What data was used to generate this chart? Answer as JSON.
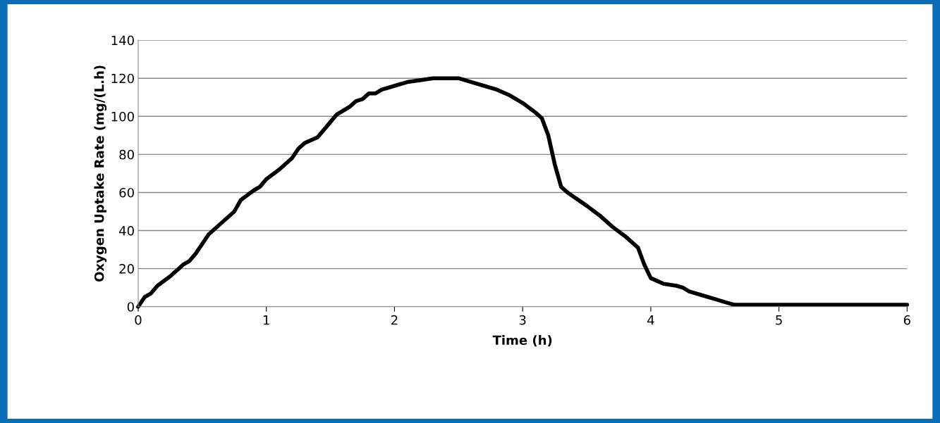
{
  "chart_data": {
    "type": "line",
    "xlabel": "Time (h)",
    "ylabel": "Oxygen Uptake Rate (mg/(L.h)",
    "series": [
      {
        "color": "#000000",
        "x": [
          0,
          0.05,
          0.1,
          0.15,
          0.25,
          0.35,
          0.4,
          0.45,
          0.55,
          0.65,
          0.75,
          0.8,
          0.9,
          0.95,
          1.0,
          1.1,
          1.2,
          1.25,
          1.3,
          1.4,
          1.5,
          1.55,
          1.65,
          1.7,
          1.75,
          1.8,
          1.85,
          1.9,
          2.0,
          2.1,
          2.2,
          2.3,
          2.4,
          2.5,
          2.6,
          2.7,
          2.8,
          2.9,
          3.0,
          3.1,
          3.15,
          3.2,
          3.25,
          3.3,
          3.35,
          3.5,
          3.6,
          3.7,
          3.8,
          3.9,
          3.95,
          4.0,
          4.1,
          4.2,
          4.25,
          4.3,
          4.4,
          4.5,
          4.6,
          4.65,
          5,
          6
        ],
        "values": [
          0,
          5,
          7,
          11,
          16,
          22,
          24,
          28,
          38,
          44,
          50,
          56,
          61,
          63,
          67,
          72,
          78,
          83,
          86,
          89,
          97,
          101,
          105,
          108,
          109,
          112,
          112,
          114,
          116,
          118,
          119,
          120,
          120,
          120,
          118,
          116,
          114,
          111,
          107,
          102,
          99,
          90,
          75,
          63,
          60,
          53,
          48,
          42,
          37,
          31,
          22,
          15,
          12,
          11,
          10,
          8,
          6,
          4,
          2,
          1,
          1,
          1
        ]
      }
    ],
    "xlim": [
      0,
      6
    ],
    "xticks": [
      0,
      1,
      2,
      3,
      4,
      5,
      6
    ],
    "ylim": [
      0,
      140
    ],
    "yticks": [
      0,
      20,
      40,
      60,
      80,
      100,
      120,
      140
    ],
    "grid": "y",
    "marker": "none",
    "line_style": "solid"
  }
}
